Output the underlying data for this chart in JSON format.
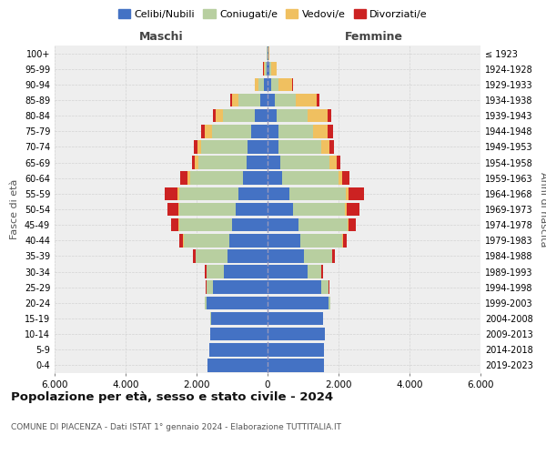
{
  "age_groups": [
    "0-4",
    "5-9",
    "10-14",
    "15-19",
    "20-24",
    "25-29",
    "30-34",
    "35-39",
    "40-44",
    "45-49",
    "50-54",
    "55-59",
    "60-64",
    "65-69",
    "70-74",
    "75-79",
    "80-84",
    "85-89",
    "90-94",
    "95-99",
    "100+"
  ],
  "birth_years": [
    "2019-2023",
    "2014-2018",
    "2009-2013",
    "2004-2008",
    "1999-2003",
    "1994-1998",
    "1989-1993",
    "1984-1988",
    "1979-1983",
    "1974-1978",
    "1969-1973",
    "1964-1968",
    "1959-1963",
    "1954-1958",
    "1949-1953",
    "1944-1948",
    "1939-1943",
    "1934-1938",
    "1929-1933",
    "1924-1928",
    "≤ 1923"
  ],
  "colors": {
    "celibi": "#4472c4",
    "coniugati": "#b8cfa0",
    "vedovi": "#f0c060",
    "divorziati": "#cc2222"
  },
  "maschi": {
    "celibi": [
      1700,
      1650,
      1620,
      1600,
      1720,
      1530,
      1230,
      1130,
      1080,
      1000,
      900,
      820,
      700,
      580,
      560,
      460,
      360,
      210,
      100,
      35,
      10
    ],
    "coniugati": [
      0,
      0,
      0,
      5,
      40,
      180,
      490,
      890,
      1290,
      1480,
      1580,
      1680,
      1480,
      1380,
      1300,
      1100,
      900,
      600,
      150,
      50,
      10
    ],
    "vedovi": [
      0,
      0,
      0,
      0,
      5,
      5,
      5,
      10,
      20,
      30,
      30,
      50,
      80,
      80,
      120,
      200,
      200,
      200,
      100,
      30,
      5
    ],
    "divorziati": [
      0,
      0,
      0,
      0,
      5,
      20,
      50,
      80,
      100,
      200,
      300,
      350,
      200,
      100,
      100,
      120,
      80,
      50,
      20,
      5,
      0
    ]
  },
  "femmine": {
    "celibi": [
      1600,
      1580,
      1610,
      1570,
      1720,
      1520,
      1120,
      1020,
      920,
      870,
      710,
      620,
      420,
      360,
      320,
      310,
      260,
      210,
      110,
      45,
      15
    ],
    "coniugati": [
      0,
      0,
      0,
      5,
      45,
      190,
      390,
      790,
      1190,
      1380,
      1480,
      1580,
      1580,
      1380,
      1180,
      980,
      880,
      580,
      190,
      50,
      5
    ],
    "vedovi": [
      0,
      0,
      0,
      0,
      5,
      5,
      5,
      10,
      20,
      40,
      50,
      80,
      100,
      200,
      250,
      400,
      550,
      600,
      400,
      150,
      20
    ],
    "divorziati": [
      0,
      0,
      0,
      0,
      5,
      20,
      50,
      80,
      100,
      200,
      350,
      450,
      200,
      100,
      120,
      150,
      100,
      80,
      20,
      5,
      0
    ]
  },
  "title": "Popolazione per età, sesso e stato civile - 2024",
  "subtitle": "COMUNE DI PIACENZA - Dati ISTAT 1° gennaio 2024 - Elaborazione TUTTITALIA.IT",
  "ylabel_left": "Fasce di età",
  "ylabel_right": "Anni di nascita",
  "xlim": 6000,
  "xlabel_left": "Maschi",
  "xlabel_right": "Femmine",
  "legend_labels": [
    "Celibi/Nubili",
    "Coniugati/e",
    "Vedovi/e",
    "Divorziati/e"
  ],
  "grid_color": "#cccccc"
}
